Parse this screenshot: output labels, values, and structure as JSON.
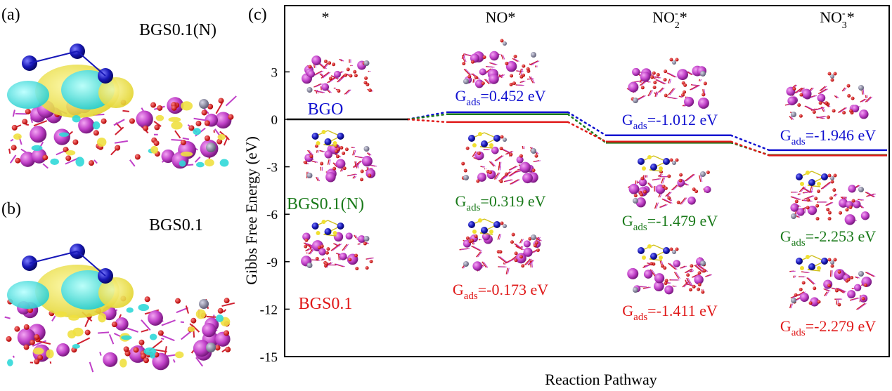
{
  "panels": {
    "a": {
      "label": "(a)",
      "title": "BGS0.1(N)"
    },
    "b": {
      "label": "(b)",
      "title": "BGS0.1"
    },
    "c": {
      "label": "(c)"
    }
  },
  "colors": {
    "BGO": "#1010d0",
    "BGS0.1(N)": "#1a7a1a",
    "BGS0.1": "#e01818",
    "reference": "#000000"
  },
  "chart_data": {
    "type": "line",
    "title": "",
    "xlabel": "Reaction Pathway",
    "ylabel": "Gibbs Free Energy  (eV)",
    "ylim": [
      -15,
      6
    ],
    "yticks": [
      3,
      0,
      -3,
      -6,
      -9,
      -12,
      -15
    ],
    "categories": [
      "*",
      "NO*",
      "NO2-*",
      "NO3-*"
    ],
    "category_labels": [
      {
        "main": "*",
        "sub": "",
        "sup": ""
      },
      {
        "main": "NO*",
        "sub": "",
        "sup": ""
      },
      {
        "main": "NO",
        "sub": "2",
        "sup": "-",
        "tail": "*"
      },
      {
        "main": "NO",
        "sub": "3",
        "sup": "-",
        "tail": "*"
      }
    ],
    "series": [
      {
        "name": "BGO",
        "values": [
          0,
          0.452,
          -1.012,
          -1.946
        ]
      },
      {
        "name": "BGS0.1(N)",
        "values": [
          0,
          0.319,
          -1.479,
          -2.253
        ]
      },
      {
        "name": "BGS0.1",
        "values": [
          0,
          -0.173,
          -1.411,
          -2.279
        ]
      }
    ],
    "series_labels": [
      {
        "name": "BGO",
        "color_key": "BGO"
      },
      {
        "name": "BGS0.1(N)",
        "color_key": "BGS0.1(N)"
      },
      {
        "name": "BGS0.1",
        "color_key": "BGS0.1"
      }
    ],
    "annotations": [
      {
        "step": 1,
        "series": "BGO",
        "prefix": "G",
        "sub": "ads",
        "text": "=0.452 eV"
      },
      {
        "step": 1,
        "series": "BGS0.1(N)",
        "prefix": "G",
        "sub": "ads",
        "text": "=0.319 eV"
      },
      {
        "step": 1,
        "series": "BGS0.1",
        "prefix": "G",
        "sub": "ads",
        "text": "=-0.173 eV"
      },
      {
        "step": 2,
        "series": "BGO",
        "prefix": "G",
        "sub": "ads",
        "text": "=-1.012 eV"
      },
      {
        "step": 2,
        "series": "BGS0.1(N)",
        "prefix": "G",
        "sub": "ads",
        "text": "=-1.479 eV"
      },
      {
        "step": 2,
        "series": "BGS0.1",
        "prefix": "G",
        "sub": "ads",
        "text": "=-1.411 eV"
      },
      {
        "step": 3,
        "series": "BGO",
        "prefix": "G",
        "sub": "ads",
        "text": "=-1.946 eV"
      },
      {
        "step": 3,
        "series": "BGS0.1(N)",
        "prefix": "G",
        "sub": "ads",
        "text": "=-2.253 eV"
      },
      {
        "step": 3,
        "series": "BGS0.1",
        "prefix": "G",
        "sub": "ads",
        "text": "=-2.279 eV"
      }
    ],
    "grid": false,
    "legend": "inline"
  }
}
